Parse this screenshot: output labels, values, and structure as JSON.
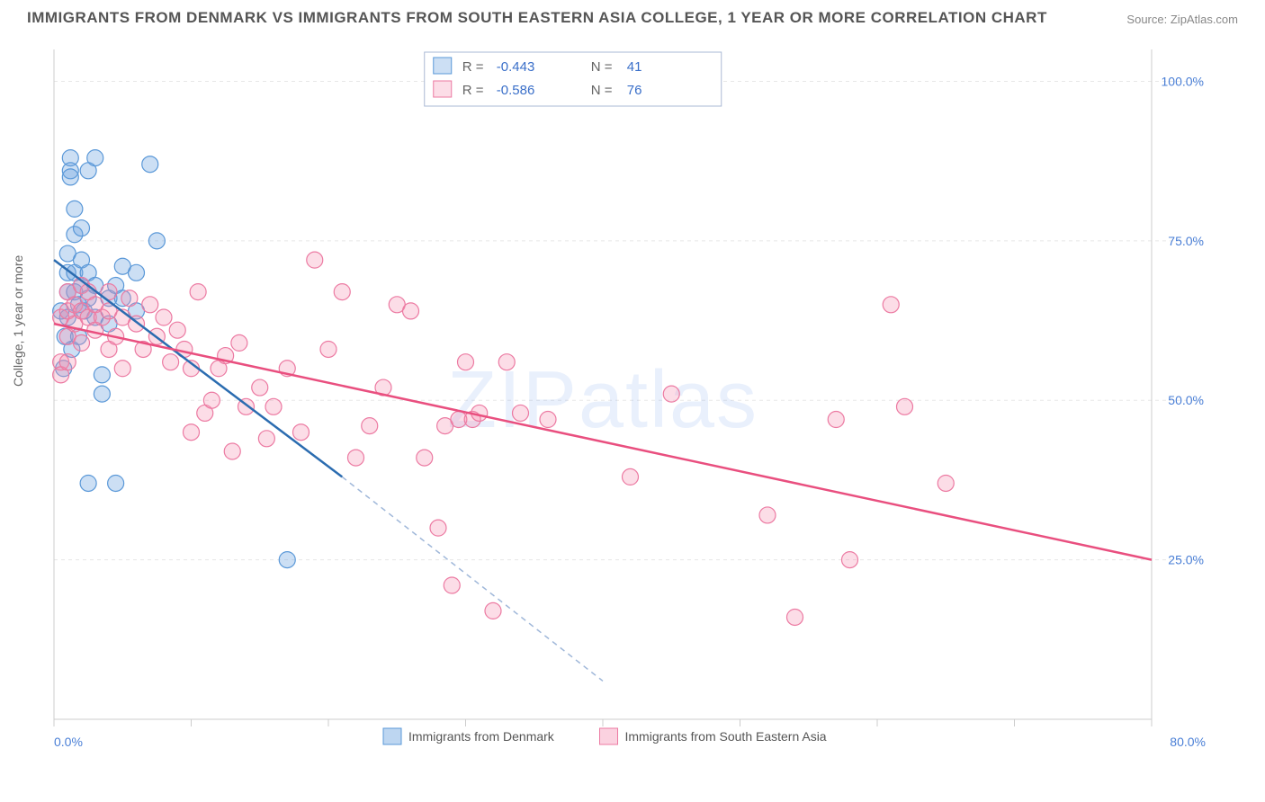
{
  "title": "IMMIGRANTS FROM DENMARK VS IMMIGRANTS FROM SOUTH EASTERN ASIA COLLEGE, 1 YEAR OR MORE CORRELATION CHART",
  "source_label": "Source:",
  "source_name": "ZipAtlas.com",
  "ylabel": "College, 1 year or more",
  "watermark": "ZIPatlas",
  "chart": {
    "type": "scatter",
    "xlim": [
      0,
      80
    ],
    "ylim": [
      0,
      105
    ],
    "x_ticks": [
      0,
      10,
      20,
      30,
      40,
      50,
      60,
      70,
      80
    ],
    "x_tick_labels": {
      "0": "0.0%",
      "80": "80.0%"
    },
    "y_gridlines": [
      25,
      50,
      75,
      100
    ],
    "y_tick_labels": {
      "25": "25.0%",
      "50": "50.0%",
      "75": "75.0%",
      "100": "100.0%"
    },
    "background_color": "#ffffff",
    "grid_color": "#e7e7e7",
    "axis_color": "#cccccc",
    "tick_label_color": "#4a7fd6",
    "tick_fontsize": 14,
    "marker_radius": 9,
    "marker_stroke_width": 1.2,
    "series": [
      {
        "name": "Immigrants from Denmark",
        "label": "Immigrants from Denmark",
        "fill": "rgba(108,163,224,0.35)",
        "stroke": "#5a98d8",
        "line_color": "#2b6cb0",
        "R": "-0.443",
        "N": "41",
        "regression": {
          "x1": 0,
          "y1": 72,
          "x2": 21,
          "y2": 38,
          "dash_x2": 40,
          "dash_y2": 6
        },
        "points": [
          [
            0.5,
            64
          ],
          [
            0.7,
            55
          ],
          [
            0.8,
            60
          ],
          [
            1,
            63
          ],
          [
            1,
            67
          ],
          [
            1,
            70
          ],
          [
            1,
            73
          ],
          [
            1.2,
            88
          ],
          [
            1.2,
            86
          ],
          [
            1.2,
            85
          ],
          [
            1.3,
            58
          ],
          [
            1.5,
            80
          ],
          [
            1.5,
            76
          ],
          [
            1.5,
            70
          ],
          [
            1.5,
            67
          ],
          [
            1.8,
            65
          ],
          [
            1.8,
            60
          ],
          [
            2,
            77
          ],
          [
            2,
            72
          ],
          [
            2,
            68
          ],
          [
            2.2,
            64
          ],
          [
            2.5,
            86
          ],
          [
            2.5,
            70
          ],
          [
            2.5,
            66
          ],
          [
            3,
            88
          ],
          [
            3,
            68
          ],
          [
            3,
            63
          ],
          [
            3.5,
            54
          ],
          [
            3.5,
            51
          ],
          [
            4,
            66
          ],
          [
            4,
            62
          ],
          [
            4.5,
            68
          ],
          [
            5,
            71
          ],
          [
            5,
            66
          ],
          [
            6,
            70
          ],
          [
            6,
            64
          ],
          [
            7,
            87
          ],
          [
            7.5,
            75
          ],
          [
            2.5,
            37
          ],
          [
            4.5,
            37
          ],
          [
            17,
            25
          ]
        ]
      },
      {
        "name": "Immigrants from South Eastern Asia",
        "label": "Immigrants from South Eastern Asia",
        "fill": "rgba(244,143,177,0.30)",
        "stroke": "#ec7aa2",
        "line_color": "#e94f7f",
        "R": "-0.586",
        "N": "76",
        "regression": {
          "x1": 0,
          "y1": 62,
          "x2": 80,
          "y2": 25
        },
        "points": [
          [
            0.5,
            56
          ],
          [
            0.5,
            63
          ],
          [
            1,
            60
          ],
          [
            1,
            64
          ],
          [
            1,
            67
          ],
          [
            1.5,
            62
          ],
          [
            1.5,
            65
          ],
          [
            2,
            59
          ],
          [
            2,
            64
          ],
          [
            2,
            68
          ],
          [
            2.5,
            63
          ],
          [
            2.5,
            67
          ],
          [
            3,
            61
          ],
          [
            3,
            65
          ],
          [
            3.5,
            63
          ],
          [
            4,
            58
          ],
          [
            4,
            64
          ],
          [
            4,
            67
          ],
          [
            4.5,
            60
          ],
          [
            5,
            55
          ],
          [
            5,
            63
          ],
          [
            5.5,
            66
          ],
          [
            6,
            62
          ],
          [
            6.5,
            58
          ],
          [
            7,
            65
          ],
          [
            7.5,
            60
          ],
          [
            8,
            63
          ],
          [
            8.5,
            56
          ],
          [
            9,
            61
          ],
          [
            9.5,
            58
          ],
          [
            10,
            45
          ],
          [
            10,
            55
          ],
          [
            10.5,
            67
          ],
          [
            11,
            48
          ],
          [
            11.5,
            50
          ],
          [
            12,
            55
          ],
          [
            12.5,
            57
          ],
          [
            13,
            42
          ],
          [
            13.5,
            59
          ],
          [
            14,
            49
          ],
          [
            15,
            52
          ],
          [
            15.5,
            44
          ],
          [
            16,
            49
          ],
          [
            17,
            55
          ],
          [
            18,
            45
          ],
          [
            19,
            72
          ],
          [
            20,
            58
          ],
          [
            21,
            67
          ],
          [
            22,
            41
          ],
          [
            23,
            46
          ],
          [
            24,
            52
          ],
          [
            25,
            65
          ],
          [
            26,
            64
          ],
          [
            27,
            41
          ],
          [
            28,
            30
          ],
          [
            28.5,
            46
          ],
          [
            29,
            21
          ],
          [
            29.5,
            47
          ],
          [
            30,
            56
          ],
          [
            30.5,
            47
          ],
          [
            31,
            48
          ],
          [
            32,
            17
          ],
          [
            33,
            56
          ],
          [
            34,
            48
          ],
          [
            36,
            47
          ],
          [
            42,
            38
          ],
          [
            45,
            51
          ],
          [
            52,
            32
          ],
          [
            54,
            16
          ],
          [
            57,
            47
          ],
          [
            58,
            25
          ],
          [
            61,
            65
          ],
          [
            62,
            49
          ],
          [
            65,
            37
          ],
          [
            0.5,
            54
          ],
          [
            1,
            56
          ]
        ]
      }
    ],
    "legend_stats": {
      "border_color": "#aab9d4",
      "label_color": "#666666",
      "value_color": "#3a6fc9",
      "box_bg": "#ffffff"
    },
    "bottom_legend": {
      "items": [
        {
          "swatch_fill": "rgba(108,163,224,0.45)",
          "swatch_stroke": "#5a98d8",
          "label": "Immigrants from Denmark"
        },
        {
          "swatch_fill": "rgba(244,143,177,0.40)",
          "swatch_stroke": "#ec7aa2",
          "label": "Immigrants from South Eastern Asia"
        }
      ]
    }
  }
}
